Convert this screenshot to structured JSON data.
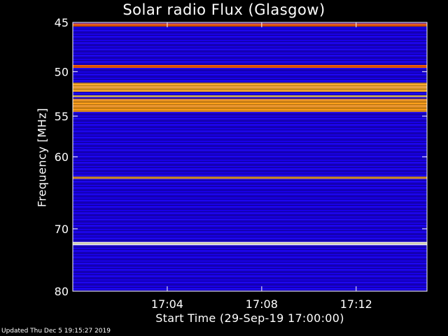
{
  "title": "Solar radio Flux (Glasgow)",
  "footer": "Updated Thu Dec  5 19:15:27 2019",
  "chart_data": {
    "type": "heatmap",
    "title": "Solar radio Flux (Glasgow)",
    "ylabel": "Frequency [MHz]",
    "xlabel": "Start Time (29-Sep-19 17:00:00)",
    "x_ticks": [
      "17:04",
      "17:08",
      "17:12"
    ],
    "x_tick_minutes": [
      4,
      8,
      12
    ],
    "xlim_minutes": [
      0,
      15
    ],
    "y_ticks": [
      45,
      50,
      55,
      60,
      70,
      80
    ],
    "y_tick_values": [
      45,
      50,
      55,
      60,
      70,
      80
    ],
    "ylim": [
      45,
      80
    ],
    "y_scale": "log",
    "grid": false,
    "colormap": [
      "#000022",
      "#000080",
      "#0000ff",
      "#ff0000",
      "#ff8800",
      "#ffff88",
      "#ffffff"
    ],
    "background_intensity": 0.35,
    "bands": [
      {
        "freq_from": 45.1,
        "freq_to": 45.4,
        "intensity": 0.62
      },
      {
        "freq_from": 49.3,
        "freq_to": 49.6,
        "intensity": 0.62
      },
      {
        "freq_from": 51.2,
        "freq_to": 52.2,
        "intensity": 0.72
      },
      {
        "freq_from": 52.6,
        "freq_to": 52.8,
        "intensity": 0.78
      },
      {
        "freq_from": 53.0,
        "freq_to": 54.5,
        "intensity": 0.7
      },
      {
        "freq_from": 62.6,
        "freq_to": 62.9,
        "intensity": 0.72
      },
      {
        "freq_from": 72.0,
        "freq_to": 72.5,
        "intensity": 0.95
      }
    ]
  }
}
